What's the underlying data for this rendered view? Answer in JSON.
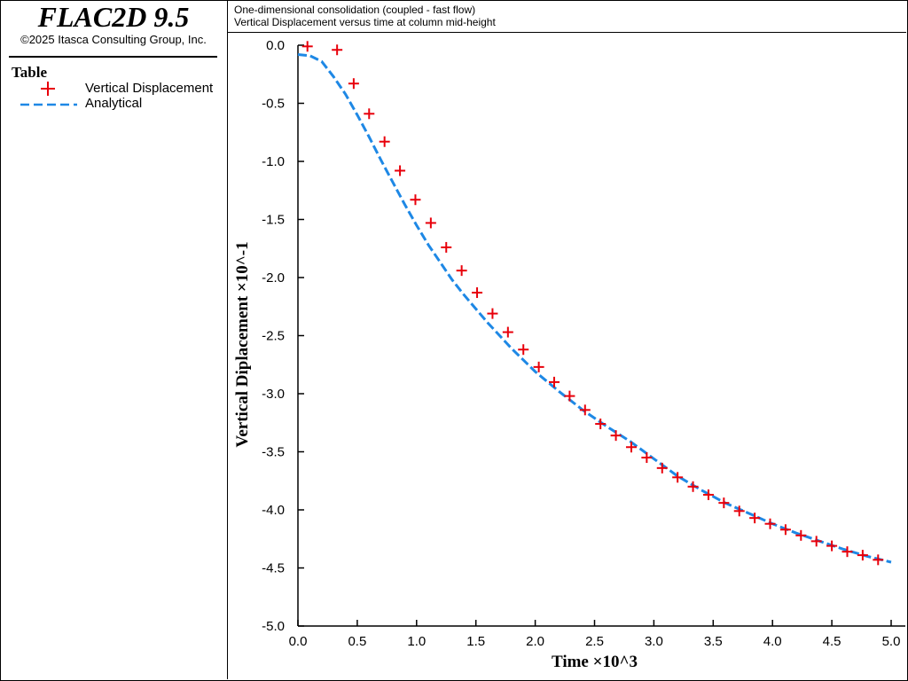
{
  "app": {
    "title": "FLAC2D 9.5",
    "copyright": "©2025 Itasca Consulting Group, Inc."
  },
  "legend": {
    "heading": "Table",
    "entries": [
      {
        "label": "Vertical Displacement",
        "marker": "plus",
        "color": "#e8000b"
      },
      {
        "label": "Analytical",
        "marker": "dashed-line",
        "color": "#1e88e5"
      }
    ]
  },
  "header": {
    "line1": "One-dimensional consolidation (coupled - fast flow)",
    "line2": "Vertical Displacement versus time at column mid-height"
  },
  "chart_data": {
    "type": "line",
    "title": "One-dimensional consolidation (coupled - fast flow)",
    "subtitle": "Vertical Displacement versus time at column mid-height",
    "xlabel": "Time ×10^3",
    "ylabel": "Vertical Diplacement ×10^-1",
    "xlim": [
      0.0,
      5.0
    ],
    "ylim": [
      -5.0,
      0.0
    ],
    "xticks": [
      "0.0",
      "0.5",
      "1.0",
      "1.5",
      "2.0",
      "2.5",
      "3.0",
      "3.5",
      "4.0",
      "4.5",
      "5.0"
    ],
    "yticks": [
      "0.0",
      "-0.5",
      "-1.0",
      "-1.5",
      "-2.0",
      "-2.5",
      "-3.0",
      "-3.5",
      "-4.0",
      "-4.5",
      "-5.0"
    ],
    "grid": false,
    "series": [
      {
        "name": "Vertical Displacement",
        "style": "markers-plus",
        "color": "#e8000b",
        "points": [
          [
            0.08,
            -0.01
          ],
          [
            0.33,
            -0.04
          ],
          [
            0.47,
            -0.33
          ],
          [
            0.6,
            -0.59
          ],
          [
            0.73,
            -0.83
          ],
          [
            0.86,
            -1.08
          ],
          [
            0.99,
            -1.33
          ],
          [
            1.12,
            -1.53
          ],
          [
            1.25,
            -1.74
          ],
          [
            1.38,
            -1.94
          ],
          [
            1.51,
            -2.13
          ],
          [
            1.64,
            -2.31
          ],
          [
            1.77,
            -2.47
          ],
          [
            1.9,
            -2.62
          ],
          [
            2.03,
            -2.77
          ],
          [
            2.16,
            -2.9
          ],
          [
            2.29,
            -3.02
          ],
          [
            2.42,
            -3.14
          ],
          [
            2.55,
            -3.26
          ],
          [
            2.68,
            -3.36
          ],
          [
            2.81,
            -3.46
          ],
          [
            2.94,
            -3.55
          ],
          [
            3.07,
            -3.64
          ],
          [
            3.2,
            -3.72
          ],
          [
            3.33,
            -3.8
          ],
          [
            3.46,
            -3.87
          ],
          [
            3.59,
            -3.94
          ],
          [
            3.72,
            -4.01
          ],
          [
            3.85,
            -4.07
          ],
          [
            3.98,
            -4.12
          ],
          [
            4.11,
            -4.17
          ],
          [
            4.24,
            -4.22
          ],
          [
            4.37,
            -4.27
          ],
          [
            4.5,
            -4.31
          ],
          [
            4.63,
            -4.36
          ],
          [
            4.76,
            -4.39
          ],
          [
            4.89,
            -4.43
          ]
        ]
      },
      {
        "name": "Analytical",
        "style": "dashed-line",
        "color": "#1e88e5",
        "points": [
          [
            0.0,
            -0.08
          ],
          [
            0.1,
            -0.09
          ],
          [
            0.2,
            -0.14
          ],
          [
            0.3,
            -0.27
          ],
          [
            0.4,
            -0.42
          ],
          [
            0.5,
            -0.6
          ],
          [
            0.6,
            -0.79
          ],
          [
            0.7,
            -0.99
          ],
          [
            0.8,
            -1.18
          ],
          [
            0.9,
            -1.37
          ],
          [
            1.0,
            -1.55
          ],
          [
            1.1,
            -1.72
          ],
          [
            1.2,
            -1.87
          ],
          [
            1.3,
            -2.02
          ],
          [
            1.4,
            -2.15
          ],
          [
            1.5,
            -2.27
          ],
          [
            1.6,
            -2.39
          ],
          [
            1.7,
            -2.5
          ],
          [
            1.8,
            -2.61
          ],
          [
            2.0,
            -2.81
          ],
          [
            2.2,
            -2.98
          ],
          [
            2.4,
            -3.14
          ],
          [
            2.6,
            -3.28
          ],
          [
            2.8,
            -3.41
          ],
          [
            3.0,
            -3.56
          ],
          [
            3.2,
            -3.71
          ],
          [
            3.4,
            -3.83
          ],
          [
            3.6,
            -3.94
          ],
          [
            3.8,
            -4.03
          ],
          [
            4.0,
            -4.12
          ],
          [
            4.2,
            -4.2
          ],
          [
            4.4,
            -4.27
          ],
          [
            4.6,
            -4.34
          ],
          [
            4.8,
            -4.4
          ],
          [
            5.0,
            -4.45
          ]
        ]
      }
    ]
  }
}
